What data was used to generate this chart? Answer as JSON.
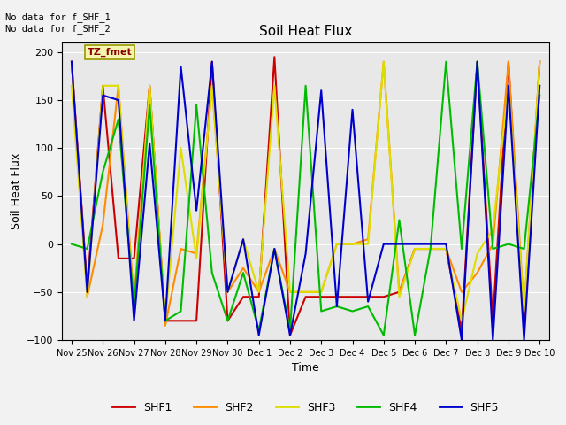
{
  "title": "Soil Heat Flux",
  "ylabel": "Soil Heat Flux",
  "xlabel": "Time",
  "ylim": [
    -100,
    210
  ],
  "yticks": [
    -100,
    -50,
    0,
    50,
    100,
    150,
    200
  ],
  "annotation_text": "No data for f_SHF_1\nNo data for f_SHF_2",
  "box_label": "TZ_fmet",
  "fig_facecolor": "#f2f2f2",
  "ax_facecolor": "#e8e8e8",
  "series": {
    "SHF1": {
      "color": "#cc0000",
      "x": [
        0.0,
        0.5,
        1.0,
        1.5,
        2.0,
        2.5,
        3.0,
        3.5,
        4.0,
        4.5,
        5.0,
        5.5,
        6.0,
        6.5,
        7.0,
        7.5,
        8.0,
        8.5,
        9.0,
        9.5,
        10.0,
        10.5,
        11.0,
        11.5,
        12.0,
        12.5,
        13.0,
        13.5,
        14.0,
        14.5,
        15.0
      ],
      "y": [
        190,
        -45,
        165,
        -15,
        -15,
        165,
        -80,
        -80,
        -80,
        190,
        -80,
        -55,
        -55,
        195,
        -95,
        -55,
        -55,
        -55,
        -55,
        -55,
        -55,
        -50,
        -5,
        -5,
        -5,
        -90,
        190,
        -80,
        190,
        -90,
        190
      ]
    },
    "SHF2": {
      "color": "#ff8c00",
      "x": [
        0.0,
        0.5,
        1.0,
        1.5,
        2.0,
        2.5,
        3.0,
        3.5,
        4.0,
        4.5,
        5.0,
        5.5,
        6.0,
        6.5,
        7.0,
        7.5,
        8.0,
        8.5,
        9.0,
        9.5,
        10.0,
        10.5,
        11.0,
        11.5,
        12.0,
        12.5,
        13.0,
        13.5,
        14.0,
        14.5,
        15.0
      ],
      "y": [
        190,
        -55,
        20,
        165,
        -60,
        165,
        -85,
        -5,
        -10,
        165,
        -50,
        -25,
        -50,
        -5,
        -50,
        -50,
        -50,
        0,
        0,
        5,
        190,
        -50,
        -5,
        -5,
        -5,
        -50,
        -30,
        0,
        190,
        -70,
        190
      ]
    },
    "SHF3": {
      "color": "#dddd00",
      "x": [
        0.0,
        0.5,
        1.0,
        1.5,
        2.0,
        2.5,
        3.0,
        3.5,
        4.0,
        4.5,
        5.0,
        5.5,
        6.0,
        6.5,
        7.0,
        7.5,
        8.0,
        8.5,
        9.0,
        9.5,
        10.0,
        10.5,
        11.0,
        11.5,
        12.0,
        12.5,
        13.0,
        13.5,
        14.0,
        14.5,
        15.0
      ],
      "y": [
        165,
        -55,
        165,
        165,
        -70,
        165,
        -80,
        100,
        -15,
        165,
        -50,
        5,
        -50,
        165,
        -50,
        -50,
        -50,
        0,
        0,
        0,
        190,
        -55,
        -5,
        -5,
        -5,
        -80,
        -10,
        15,
        165,
        -70,
        190
      ]
    },
    "SHF4": {
      "color": "#00bb00",
      "x": [
        0.0,
        0.5,
        1.0,
        1.5,
        2.0,
        2.5,
        3.0,
        3.5,
        4.0,
        4.5,
        5.0,
        5.5,
        6.0,
        6.5,
        7.0,
        7.5,
        8.0,
        8.5,
        9.0,
        9.5,
        10.0,
        10.5,
        11.0,
        11.5,
        12.0,
        12.5,
        13.0,
        13.5,
        14.0,
        14.5,
        15.0
      ],
      "y": [
        0,
        -5,
        75,
        130,
        -65,
        145,
        -80,
        -70,
        145,
        -30,
        -80,
        -30,
        -90,
        -5,
        -90,
        165,
        -70,
        -65,
        -70,
        -65,
        -95,
        25,
        -95,
        -5,
        190,
        -5,
        190,
        -5,
        0,
        -5,
        155
      ]
    },
    "SHF5": {
      "color": "#0000cc",
      "x": [
        0.0,
        0.5,
        1.0,
        1.5,
        2.0,
        2.5,
        3.0,
        3.5,
        4.0,
        4.5,
        5.0,
        5.5,
        6.0,
        6.5,
        7.0,
        7.5,
        8.0,
        8.5,
        9.0,
        9.5,
        10.0,
        10.5,
        11.0,
        11.5,
        12.0,
        12.5,
        13.0,
        13.5,
        14.0,
        14.5,
        15.0
      ],
      "y": [
        190,
        -50,
        155,
        150,
        -80,
        105,
        -80,
        185,
        35,
        190,
        -50,
        5,
        -95,
        -5,
        -95,
        -10,
        160,
        -65,
        140,
        -60,
        0,
        0,
        0,
        0,
        0,
        -100,
        190,
        -100,
        165,
        -100,
        165
      ]
    }
  },
  "xtick_positions": [
    0,
    1,
    2,
    3,
    4,
    5,
    6,
    7,
    8,
    9,
    10,
    11,
    12,
    13,
    14,
    15
  ],
  "xtick_labels": [
    "Nov 25",
    "Nov 26",
    "Nov 27",
    "Nov 28",
    "Nov 29",
    "Nov 30",
    "Dec 1",
    "Dec 2",
    "Dec 3",
    "Dec 4",
    "Dec 5",
    "Dec 6",
    "Dec 7",
    "Dec 8",
    "Dec 9",
    "Dec 10"
  ]
}
